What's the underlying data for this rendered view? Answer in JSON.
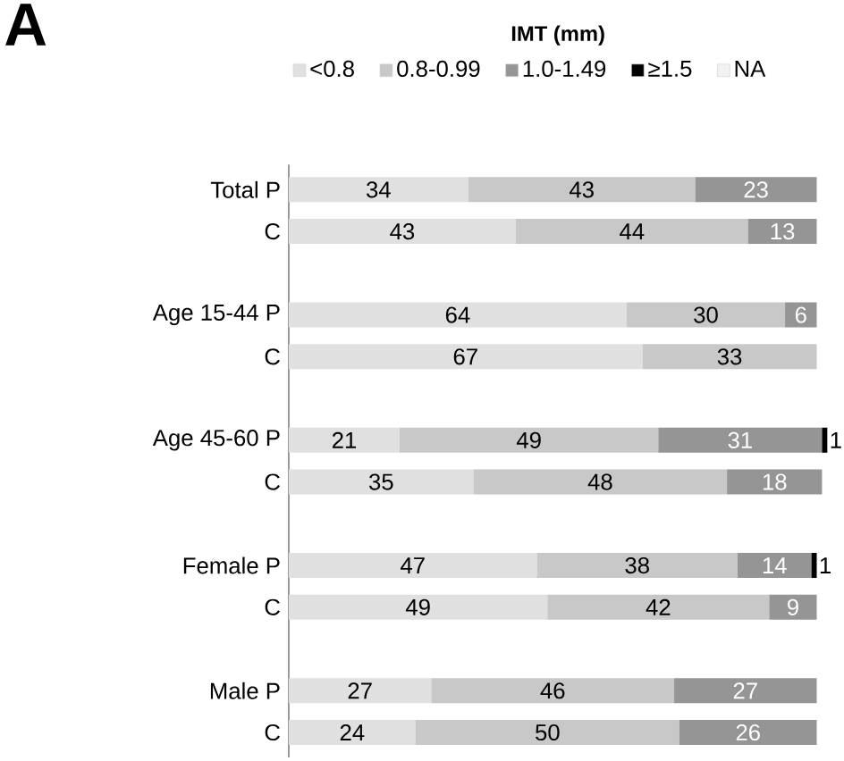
{
  "chart_data": {
    "type": "bar",
    "orientation": "horizontal",
    "stacked": true,
    "data_labels": true,
    "legend": "top",
    "tick_labels": "y",
    "legend_title": "IMT (mm)",
    "annotations": [
      "A"
    ],
    "xlim": [
      0,
      102
    ],
    "categories": [
      "Total P",
      "C",
      null,
      "Age 15-44 P",
      "C",
      null,
      "Age 45-60 P",
      "C",
      null,
      "Female P",
      "C",
      null,
      "Male P",
      "C"
    ],
    "series": [
      {
        "name": "<0.8",
        "color": "#e0e0e0",
        "values": [
          34,
          43,
          null,
          64,
          67,
          null,
          21,
          35,
          null,
          47,
          49,
          null,
          27,
          24
        ]
      },
      {
        "name": "0.8-0.99",
        "color": "#c8c8c8",
        "values": [
          43,
          44,
          null,
          30,
          33,
          null,
          49,
          48,
          null,
          38,
          42,
          null,
          46,
          50
        ]
      },
      {
        "name": "1.0-1.49",
        "color": "#959595",
        "values": [
          23,
          13,
          null,
          6,
          null,
          null,
          31,
          18,
          null,
          14,
          9,
          null,
          27,
          26
        ]
      },
      {
        "name": "≥1.5",
        "color": "#000000",
        "values": [
          null,
          null,
          null,
          null,
          null,
          null,
          1,
          null,
          null,
          1,
          null,
          null,
          null,
          null
        ]
      },
      {
        "name": "NA",
        "color": "#f2f2f2",
        "values": [
          null,
          null,
          null,
          null,
          null,
          null,
          null,
          null,
          null,
          null,
          null,
          null,
          null,
          null
        ]
      }
    ]
  }
}
